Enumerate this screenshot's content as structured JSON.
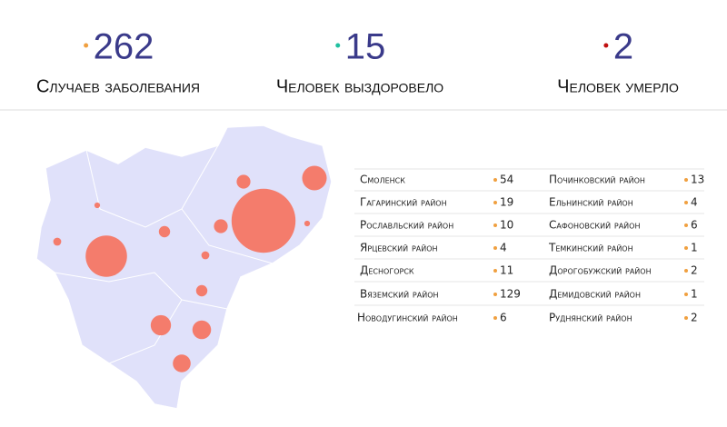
{
  "stats": [
    {
      "value": 262,
      "label": "Случаев заболевания"
    },
    {
      "value": 15,
      "label": "Человек выздоровело"
    },
    {
      "value": 2,
      "label": "Человек умерло"
    }
  ],
  "districts": [
    {
      "name": "Смоленск",
      "value": 54
    },
    {
      "name": "Гагаринский район",
      "value": 19
    },
    {
      "name": "Рославльский район",
      "value": 10
    },
    {
      "name": "Ярцевский район",
      "value": 4
    },
    {
      "name": "Десногорск",
      "value": 11
    },
    {
      "name": "Вяземский район",
      "value": 129
    },
    {
      "name": "Новодугинский район",
      "value": 6
    },
    {
      "name": "Починковский район",
      "value": 13
    },
    {
      "name": "Ельнинский район",
      "value": 4
    },
    {
      "name": "Сафоновский район",
      "value": 6
    },
    {
      "name": "Темкинский район",
      "value": 1
    },
    {
      "name": "Дорогобужский район",
      "value": 2
    },
    {
      "name": "Демидовский район",
      "value": 1
    },
    {
      "name": "Руднянский район",
      "value": 2
    }
  ]
}
